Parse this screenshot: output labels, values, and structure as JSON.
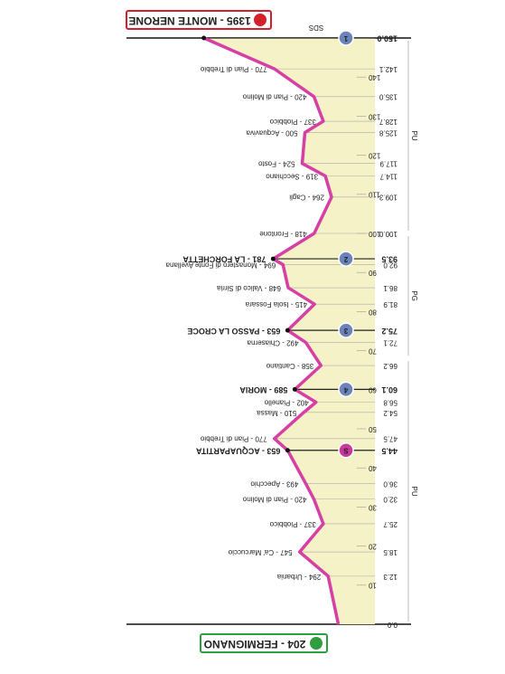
{
  "chart_data": {
    "type": "line",
    "annotation": "SDS",
    "start_label": "204 - FERMIGNANO",
    "finish_label": "1395 - MONTE NERONE",
    "start_color": "#2e9e3e",
    "finish_color": "#d4202a",
    "color": "#d63fa4",
    "fill_color": "#f4f2c6",
    "x": [
      0,
      12.3,
      18.5,
      25.7,
      32.0,
      36.0,
      44.5,
      47.5,
      54.2,
      56.8,
      60.1,
      66.2,
      72.1,
      75.2,
      81.9,
      86.1,
      92.0,
      93.5,
      100.0,
      109.3,
      114.7,
      117.9,
      125.8,
      128.7,
      135.0,
      142.1,
      150.0
    ],
    "x_labels": [
      "0.0",
      "12.3",
      "18.5",
      "25.7",
      "32.0",
      "36.0",
      "44.5",
      "47.5",
      "54.2",
      "56.8",
      "60.1",
      "66.2",
      "72.1",
      "75.2",
      "81.9",
      "86.1",
      "92.0",
      "93.5",
      "100.0",
      "109.3",
      "114.7",
      "117.9",
      "125.8",
      "128.7",
      "135.0",
      "142.1",
      "150.0"
    ],
    "values": [
      204,
      294,
      547,
      337,
      420,
      493,
      653,
      770,
      510,
      402,
      589,
      358,
      492,
      653,
      415,
      648,
      694,
      781,
      418,
      264,
      319,
      524,
      500,
      337,
      420,
      770,
      1395
    ],
    "point_labels": [
      null,
      "294 - Urbania",
      "547 - Ca' Marcuccio",
      "337 - Piobbico",
      "420 - Pian di Molino",
      "493 - Apecchio",
      "653 - ACQUAPARTITA",
      "770 - Pian di Trebbio",
      "510 - Massa",
      "402 - Pianello",
      "589 - MORIA",
      "358 - Cantiano",
      "492 - Chiaserna",
      "653 - PASSO LA CROCE",
      "415 - Isola Fossara",
      "648 - Valico di Sirria",
      "694 - Monastero di Fonte Avellana",
      "781 - LA FORCHETTA",
      "418 - Frontone",
      "264 - Cagli",
      "319 - Secchiano",
      "524 - Fosto",
      "500 - Acquaviva",
      "337 - Piobbico",
      "420 - Pian di Molino",
      "770 - Pian di Trebbio",
      null
    ],
    "markers": [
      null,
      null,
      null,
      null,
      null,
      null,
      {
        "label": "S",
        "color": "#c8379a"
      },
      null,
      null,
      null,
      {
        "label": "4",
        "color": "#6b83b8"
      },
      null,
      null,
      {
        "label": "3",
        "color": "#6b83b8"
      },
      null,
      null,
      null,
      {
        "label": "2",
        "color": "#6b83b8"
      },
      null,
      null,
      null,
      null,
      null,
      null,
      null,
      null,
      {
        "label": "1",
        "color": "#6b83b8"
      }
    ],
    "xlim": [
      0,
      150
    ],
    "ylim": [
      0,
      1400
    ],
    "xticks": [
      10,
      20,
      30,
      40,
      50,
      60,
      70,
      80,
      90,
      100,
      110,
      120,
      130,
      140
    ],
    "zones": [
      {
        "label": "PU",
        "x": [
          0,
          68
        ]
      },
      {
        "label": "PG",
        "x": [
          68,
          100
        ]
      },
      {
        "label": "PU",
        "x": [
          100,
          150
        ]
      }
    ]
  }
}
